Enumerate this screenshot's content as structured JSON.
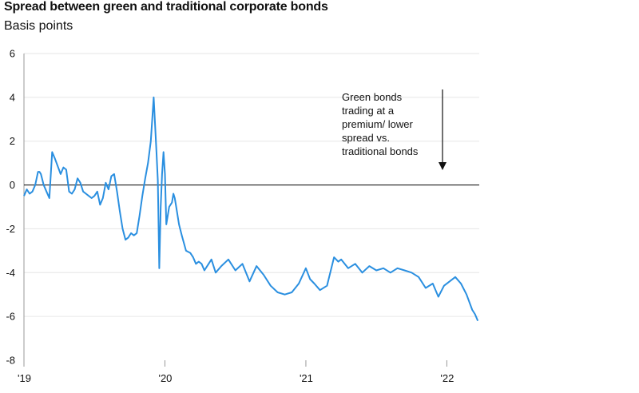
{
  "title": "Spread between green and traditional corporate bonds",
  "subtitle": "Basis points",
  "annotation": [
    "Green bonds",
    "trading at a",
    "premium/ lower",
    "spread vs.",
    "traditional bonds"
  ],
  "colors": {
    "line": "#2a8fe0",
    "grid": "#e6e6e6",
    "zero": "#000000",
    "text": "#111111"
  },
  "chart_data": {
    "type": "line",
    "title": "Spread between green and traditional corporate bonds",
    "ylabel": "Basis points",
    "xlabel": "",
    "xlim": [
      2019.0,
      2022.23
    ],
    "ylim": [
      -8,
      6
    ],
    "yticks": [
      6,
      4,
      2,
      0,
      -2,
      -4,
      -6,
      -8
    ],
    "ytick_labels": [
      "6",
      "4",
      "2",
      "0",
      "-2",
      "-4",
      "-6",
      "-8"
    ],
    "xticks": [
      2019.0,
      2020.0,
      2021.0,
      2022.0
    ],
    "xtick_labels": [
      "'19",
      "'20",
      "'21",
      "'22"
    ],
    "grid": true,
    "legend": "none",
    "series": [
      {
        "x": [
          2019.0,
          2019.02,
          2019.04,
          2019.06,
          2019.08,
          2019.1,
          2019.11,
          2019.12,
          2019.14,
          2019.16,
          2019.18,
          2019.2,
          2019.22,
          2019.26,
          2019.28,
          2019.3,
          2019.32,
          2019.34,
          2019.36,
          2019.38,
          2019.4,
          2019.42,
          2019.44,
          2019.46,
          2019.48,
          2019.5,
          2019.52,
          2019.54,
          2019.56,
          2019.58,
          2019.6,
          2019.62,
          2019.64,
          2019.66,
          2019.68,
          2019.7,
          2019.72,
          2019.74,
          2019.76,
          2019.78,
          2019.8,
          2019.82,
          2019.84,
          2019.86,
          2019.88,
          2019.9,
          2019.92,
          2019.94,
          2019.95,
          2019.96,
          2019.97,
          2019.98,
          2019.99,
          2020.0,
          2020.01,
          2020.02,
          2020.03,
          2020.04,
          2020.05,
          2020.06,
          2020.07,
          2020.08,
          2020.1,
          2020.12,
          2020.15,
          2020.18,
          2020.2,
          2020.22,
          2020.24,
          2020.26,
          2020.28,
          2020.3,
          2020.33,
          2020.36,
          2020.4,
          2020.45,
          2020.5,
          2020.55,
          2020.6,
          2020.65,
          2020.7,
          2020.75,
          2020.8,
          2020.85,
          2020.9,
          2020.95,
          2021.0,
          2021.03,
          2021.06,
          2021.1,
          2021.15,
          2021.2,
          2021.23,
          2021.25,
          2021.3,
          2021.35,
          2021.4,
          2021.45,
          2021.5,
          2021.55,
          2021.6,
          2021.65,
          2021.7,
          2021.75,
          2021.8,
          2021.85,
          2021.9,
          2021.94,
          2021.98,
          2022.02,
          2022.06,
          2022.1,
          2022.14,
          2022.18,
          2022.2,
          2022.22
        ],
        "y": [
          -0.5,
          -0.2,
          -0.4,
          -0.3,
          0.0,
          0.6,
          0.6,
          0.5,
          0.0,
          -0.3,
          -0.6,
          1.5,
          1.2,
          0.5,
          0.8,
          0.7,
          -0.3,
          -0.4,
          -0.2,
          0.3,
          0.1,
          -0.3,
          -0.4,
          -0.5,
          -0.6,
          -0.5,
          -0.3,
          -0.9,
          -0.6,
          0.1,
          -0.2,
          0.4,
          0.5,
          -0.3,
          -1.2,
          -2.0,
          -2.5,
          -2.4,
          -2.2,
          -2.3,
          -2.2,
          -1.4,
          -0.5,
          0.3,
          1.0,
          2.0,
          4.0,
          1.5,
          0.2,
          -3.8,
          -1.0,
          0.5,
          1.5,
          0.5,
          -1.8,
          -1.4,
          -1.0,
          -0.9,
          -0.8,
          -0.4,
          -0.6,
          -1.0,
          -1.8,
          -2.3,
          -3.0,
          -3.1,
          -3.3,
          -3.6,
          -3.5,
          -3.6,
          -3.9,
          -3.7,
          -3.4,
          -4.0,
          -3.7,
          -3.4,
          -3.9,
          -3.6,
          -4.4,
          -3.7,
          -4.1,
          -4.6,
          -4.9,
          -5.0,
          -4.9,
          -4.5,
          -3.8,
          -4.3,
          -4.5,
          -4.8,
          -4.6,
          -3.3,
          -3.5,
          -3.4,
          -3.8,
          -3.6,
          -4.0,
          -3.7,
          -3.9,
          -3.8,
          -4.0,
          -3.8,
          -3.9,
          -4.0,
          -4.2,
          -4.7,
          -4.5,
          -5.1,
          -4.6,
          -4.4,
          -4.2,
          -4.5,
          -5.0,
          -5.7,
          -5.9,
          -6.2
        ]
      }
    ]
  }
}
